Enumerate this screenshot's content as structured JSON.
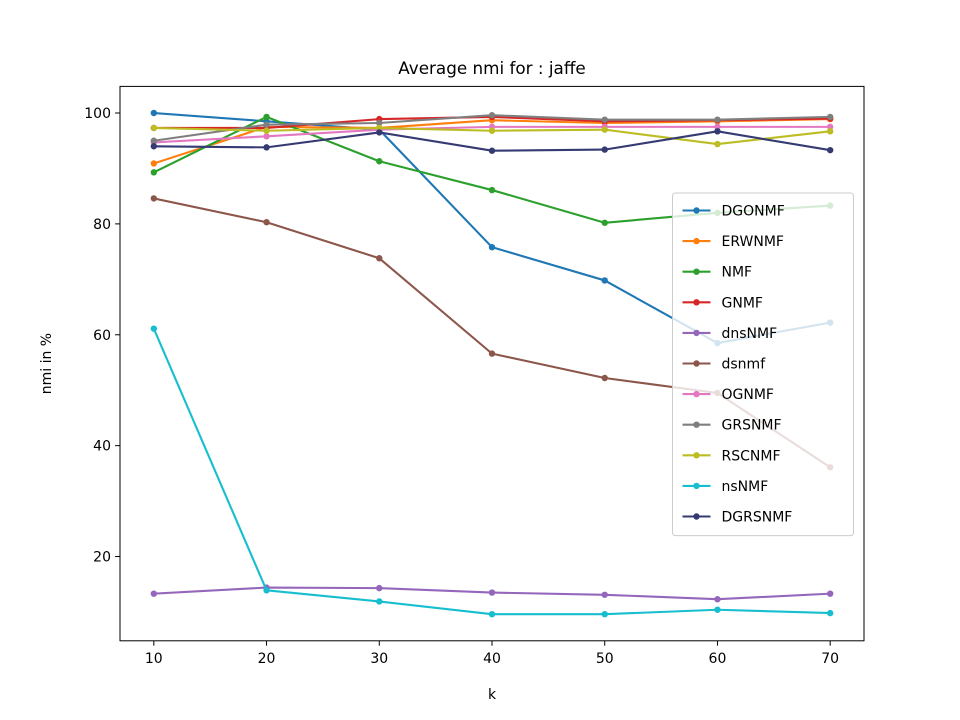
{
  "chart_data": {
    "type": "line",
    "title": "Average nmi for : jaffe",
    "xlabel": "k",
    "ylabel": "nmi in %",
    "x": [
      10,
      20,
      30,
      40,
      50,
      60,
      70
    ],
    "xticks": [
      10,
      20,
      30,
      40,
      50,
      60,
      70
    ],
    "yticks": [
      20,
      40,
      60,
      80,
      100
    ],
    "xlim": [
      7,
      73
    ],
    "ylim": [
      4.8,
      104.8
    ],
    "grid": false,
    "legend_position": "center-right",
    "series": [
      {
        "name": "DGONMF",
        "color": "#1f77b4",
        "values": [
          100.0,
          98.5,
          97.0,
          75.8,
          69.8,
          58.5,
          62.2
        ]
      },
      {
        "name": "ERWNMF",
        "color": "#ff7f0e",
        "values": [
          90.9,
          97.5,
          97.3,
          98.7,
          98.2,
          98.5,
          98.9
        ]
      },
      {
        "name": "NMF",
        "color": "#2ca02c",
        "values": [
          89.3,
          99.3,
          91.3,
          86.1,
          80.2,
          82.0,
          83.3
        ]
      },
      {
        "name": "GNMF",
        "color": "#d62728",
        "values": [
          97.3,
          97.3,
          98.9,
          99.3,
          98.5,
          98.7,
          99.0
        ]
      },
      {
        "name": "dnsNMF",
        "color": "#9467bd",
        "values": [
          13.3,
          14.4,
          14.3,
          13.5,
          13.1,
          12.3,
          13.3
        ]
      },
      {
        "name": "dsnmf",
        "color": "#8c564b",
        "values": [
          84.6,
          80.3,
          73.8,
          56.6,
          52.2,
          49.5,
          36.1
        ]
      },
      {
        "name": "OGNMF",
        "color": "#e377c2",
        "values": [
          94.7,
          95.8,
          97.0,
          97.5,
          97.5,
          97.5,
          97.5
        ]
      },
      {
        "name": "GRSNMF",
        "color": "#7f7f7f",
        "values": [
          95.0,
          97.9,
          98.2,
          99.6,
          98.8,
          98.8,
          99.3
        ]
      },
      {
        "name": "RSCNMF",
        "color": "#bcbd22",
        "values": [
          97.3,
          96.8,
          97.3,
          96.8,
          97.0,
          94.4,
          96.7
        ]
      },
      {
        "name": "nsNMF",
        "color": "#17becf",
        "values": [
          61.1,
          13.9,
          11.9,
          9.6,
          9.6,
          10.4,
          9.8
        ]
      },
      {
        "name": "DGRSNMF",
        "color": "#353a72",
        "values": [
          94.0,
          93.8,
          96.5,
          93.2,
          93.4,
          96.7,
          93.3
        ]
      }
    ]
  }
}
